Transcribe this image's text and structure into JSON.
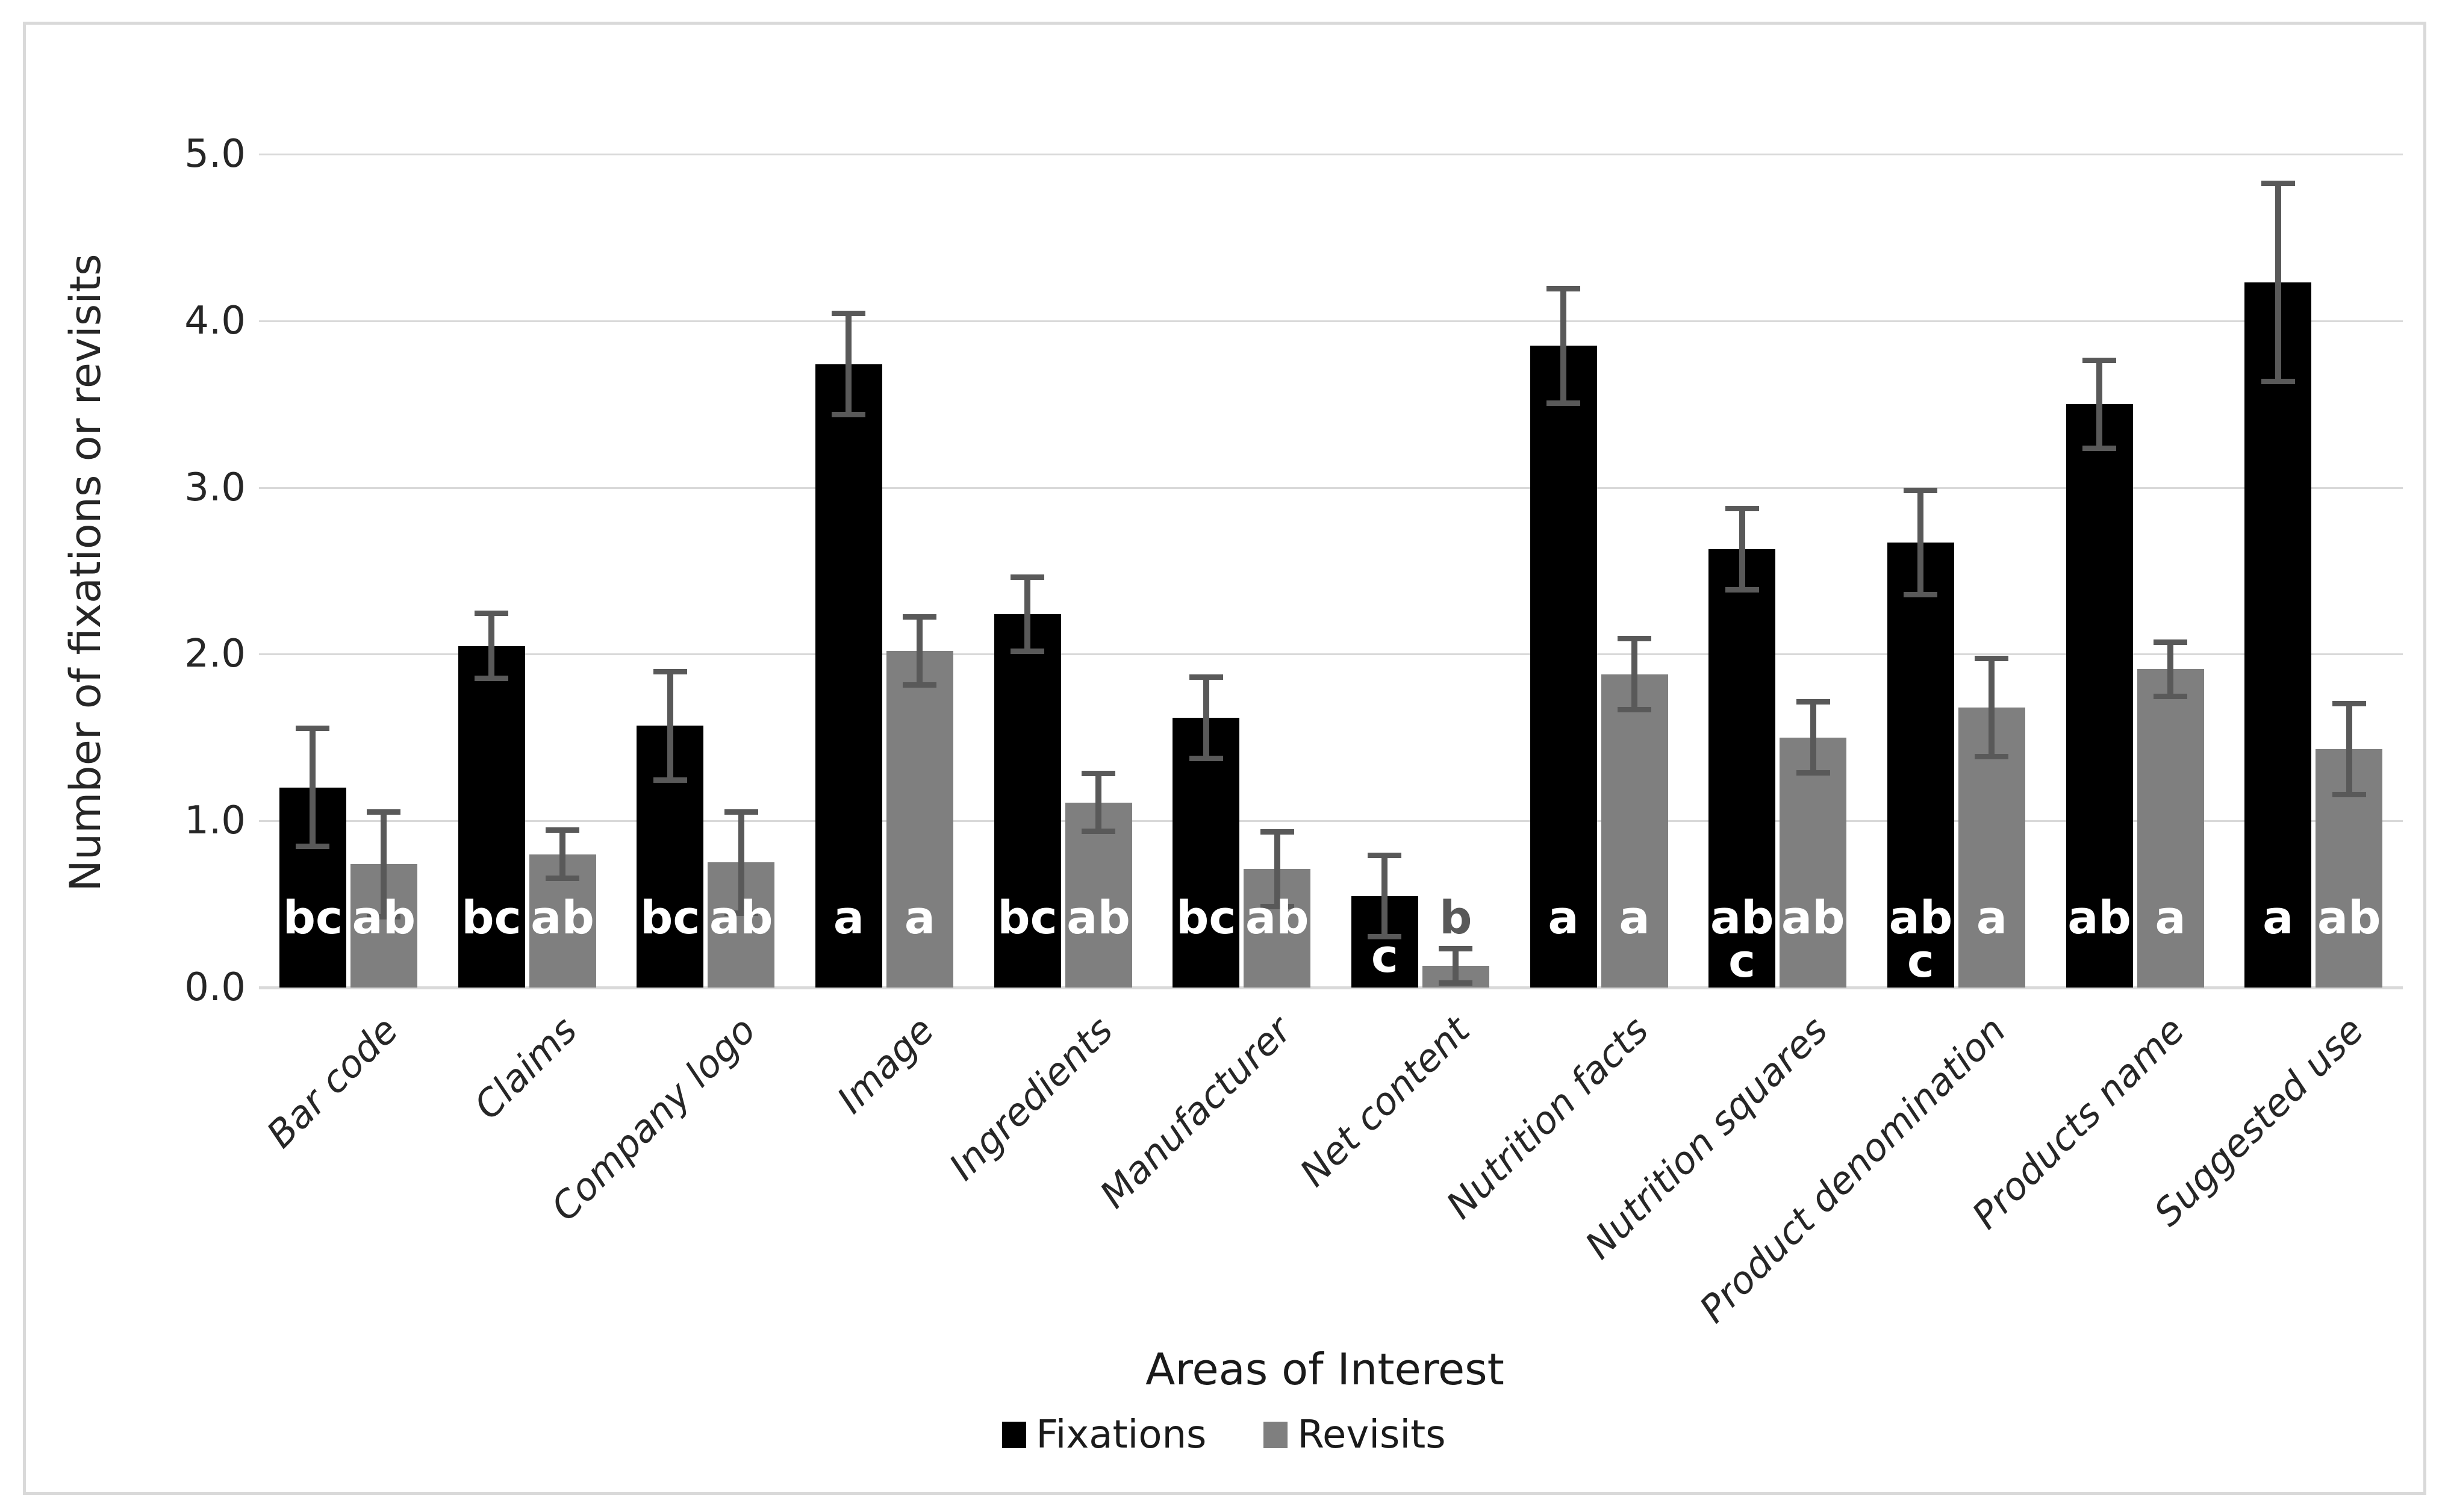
{
  "frame": {
    "background": "#ffffff",
    "border_color": "#d9d9d9"
  },
  "y_axis": {
    "title": "Number of fixations or revisits",
    "ticks": [
      "5.0",
      "4.0",
      "3.0",
      "2.0",
      "1.0",
      "0.0"
    ],
    "min": 0,
    "max": 5
  },
  "x_axis": {
    "title": "Areas of Interest"
  },
  "legend": {
    "items": [
      {
        "label": "Fixations",
        "color": "#000000"
      },
      {
        "label": "Revisits",
        "color": "#7f7f7f"
      }
    ]
  },
  "colors": {
    "fixations_bar": "#000000",
    "revisits_bar": "#7f7f7f",
    "error_bar": "#595959",
    "gridline": "#d9d9d9",
    "letter_inside": "#ffffff",
    "letter_outside": "#595959"
  },
  "chart_data": {
    "type": "bar",
    "title": "",
    "xlabel": "Areas of Interest",
    "ylabel": "Number of fixations or revisits",
    "ylim": [
      0,
      5
    ],
    "ytick_step": 1.0,
    "grid": true,
    "legend_position": "bottom",
    "categories": [
      "Bar code",
      "Claims",
      "Company logo",
      "Image",
      "Ingredients",
      "Manufacturer",
      "Net content",
      "Nutrition facts",
      "Nutrition squares",
      "Product denomination",
      "Products name",
      "Suggested use"
    ],
    "series": [
      {
        "name": "Fixations",
        "color": "#000000",
        "values": [
          1.2,
          2.05,
          1.57,
          3.74,
          2.24,
          1.62,
          0.55,
          3.85,
          2.63,
          2.67,
          3.5,
          4.23
        ],
        "errors": [
          0.37,
          0.21,
          0.34,
          0.32,
          0.24,
          0.26,
          0.26,
          0.36,
          0.26,
          0.33,
          0.28,
          0.61
        ],
        "sig_letters": [
          "bc",
          "bc",
          "bc",
          "a",
          "bc",
          "bc",
          "c",
          "a",
          "ab\nc",
          "ab\nc",
          "ab",
          "a"
        ],
        "letter_placements": [
          "inside",
          "inside",
          "inside",
          "inside",
          "inside",
          "inside",
          "inside-low",
          "inside",
          "two-line",
          "two-line",
          "inside",
          "inside"
        ]
      },
      {
        "name": "Revisits",
        "color": "#7f7f7f",
        "values": [
          0.74,
          0.8,
          0.75,
          2.02,
          1.11,
          0.71,
          0.13,
          1.88,
          1.5,
          1.68,
          1.91,
          1.43
        ],
        "errors": [
          0.33,
          0.16,
          0.32,
          0.22,
          0.19,
          0.24,
          0.12,
          0.23,
          0.23,
          0.31,
          0.18,
          0.29
        ],
        "sig_letters": [
          "ab",
          "ab",
          "ab",
          "a",
          "ab",
          "ab",
          "b",
          "a",
          "ab",
          "a",
          "a",
          "ab"
        ],
        "letter_placements": [
          "inside",
          "inside",
          "inside",
          "inside",
          "inside",
          "inside",
          "above",
          "inside",
          "inside",
          "inside",
          "inside",
          "inside"
        ]
      }
    ]
  }
}
